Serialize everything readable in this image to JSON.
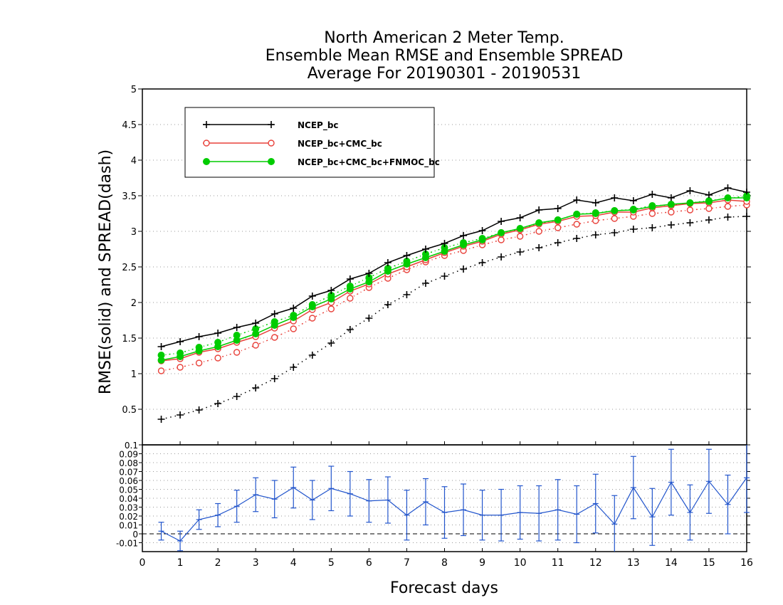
{
  "chart_data": [
    {
      "type": "line",
      "title": [
        "North American 2 Meter Temp.",
        "Ensemble Mean RMSE and Ensemble SPREAD",
        "Average For 20190301 - 20190531"
      ],
      "ylabel": "RMSE(solid) and SPREAD(dash)",
      "xlim": [
        0,
        16
      ],
      "ylim": [
        0,
        5
      ],
      "yticks": [
        0.5,
        1,
        1.5,
        2,
        2.5,
        3,
        3.5,
        4,
        4.5,
        5
      ],
      "ytick_labels": [
        "0.5",
        "1",
        "1.5",
        "2",
        "2.5",
        "3",
        "3.5",
        "4",
        "4.5",
        "5"
      ],
      "grid": "dotted horizontal",
      "legend_position": "top-left",
      "x": [
        0.5,
        1.0,
        1.5,
        2.0,
        2.5,
        3.0,
        3.5,
        4.0,
        4.5,
        5.0,
        5.5,
        6.0,
        6.5,
        7.0,
        7.5,
        8.0,
        8.5,
        9.0,
        9.5,
        10.0,
        10.5,
        11.0,
        11.5,
        12.0,
        12.5,
        13.0,
        13.5,
        14.0,
        14.5,
        15.0,
        15.5,
        16.0
      ],
      "series": [
        {
          "name": "NCEP_bc",
          "color": "#000000",
          "marker": "plus",
          "kind": "rmse",
          "values": [
            1.38,
            1.45,
            1.52,
            1.57,
            1.65,
            1.71,
            1.84,
            1.92,
            2.09,
            2.17,
            2.33,
            2.41,
            2.56,
            2.66,
            2.75,
            2.83,
            2.94,
            3.01,
            3.14,
            3.19,
            3.3,
            3.32,
            3.44,
            3.4,
            3.47,
            3.43,
            3.52,
            3.47,
            3.57,
            3.51,
            3.61,
            3.55
          ]
        },
        {
          "name": "NCEP_bc+CMC_bc",
          "color": "#e8413a",
          "marker": "circle",
          "kind": "rmse",
          "values": [
            1.18,
            1.21,
            1.3,
            1.35,
            1.44,
            1.52,
            1.64,
            1.74,
            1.9,
            2.0,
            2.16,
            2.26,
            2.4,
            2.5,
            2.6,
            2.7,
            2.79,
            2.86,
            2.96,
            3.02,
            3.1,
            3.14,
            3.21,
            3.22,
            3.27,
            3.27,
            3.33,
            3.36,
            3.39,
            3.4,
            3.44,
            3.42
          ]
        },
        {
          "name": "NCEP_bc+CMC_bc+FNMOC_bc",
          "color": "#00cc00",
          "marker": "dot",
          "kind": "rmse",
          "values": [
            1.19,
            1.24,
            1.32,
            1.38,
            1.47,
            1.56,
            1.68,
            1.79,
            1.94,
            2.05,
            2.19,
            2.29,
            2.44,
            2.54,
            2.63,
            2.72,
            2.81,
            2.88,
            2.98,
            3.04,
            3.12,
            3.16,
            3.24,
            3.25,
            3.29,
            3.3,
            3.35,
            3.38,
            3.4,
            3.42,
            3.47,
            3.47
          ]
        },
        {
          "name": "NCEP_bc",
          "color": "#000000",
          "marker": "plus",
          "kind": "spread",
          "values": [
            0.36,
            0.42,
            0.49,
            0.58,
            0.68,
            0.8,
            0.93,
            1.09,
            1.26,
            1.43,
            1.62,
            1.78,
            1.97,
            2.11,
            2.27,
            2.37,
            2.47,
            2.56,
            2.64,
            2.71,
            2.77,
            2.84,
            2.9,
            2.95,
            2.98,
            3.03,
            3.05,
            3.09,
            3.12,
            3.16,
            3.2,
            3.21
          ]
        },
        {
          "name": "NCEP_bc+CMC_bc",
          "color": "#e8413a",
          "marker": "circle",
          "kind": "spread",
          "values": [
            1.04,
            1.09,
            1.15,
            1.22,
            1.3,
            1.4,
            1.51,
            1.63,
            1.78,
            1.91,
            2.06,
            2.21,
            2.34,
            2.46,
            2.57,
            2.66,
            2.73,
            2.81,
            2.88,
            2.93,
            3.0,
            3.05,
            3.1,
            3.15,
            3.18,
            3.21,
            3.25,
            3.27,
            3.3,
            3.32,
            3.35,
            3.37
          ]
        },
        {
          "name": "NCEP_bc+CMC_bc+FNMOC_bc",
          "color": "#00cc00",
          "marker": "dot",
          "kind": "spread",
          "values": [
            1.26,
            1.29,
            1.37,
            1.44,
            1.54,
            1.63,
            1.73,
            1.82,
            1.97,
            2.1,
            2.23,
            2.35,
            2.48,
            2.58,
            2.68,
            2.77,
            2.84,
            2.9,
            2.98,
            3.03,
            3.11,
            3.16,
            3.24,
            3.26,
            3.29,
            3.31,
            3.36,
            3.37,
            3.4,
            3.43,
            3.46,
            3.5
          ]
        }
      ]
    },
    {
      "type": "line",
      "xlabel": "Forecast days",
      "xlim": [
        0,
        16
      ],
      "xticks": [
        0,
        1,
        2,
        3,
        4,
        5,
        6,
        7,
        8,
        9,
        10,
        11,
        12,
        13,
        14,
        15,
        16
      ],
      "xtick_labels": [
        "0",
        "1",
        "2",
        "3",
        "4",
        "5",
        "6",
        "7",
        "8",
        "9",
        "10",
        "11",
        "12",
        "13",
        "14",
        "15",
        "16"
      ],
      "ylim": [
        -0.02,
        0.1
      ],
      "yticks": [
        -0.01,
        0,
        0.01,
        0.02,
        0.03,
        0.04,
        0.05,
        0.06,
        0.07,
        0.08,
        0.09,
        0.1
      ],
      "ytick_labels": [
        "-0.01",
        "0",
        "0.01",
        "0.02",
        "0.03",
        "0.04",
        "0.05",
        "0.06",
        "0.07",
        "0.08",
        "0.09",
        "0.1"
      ],
      "grid": "dotted horizontal",
      "zero_line": "dashed",
      "series": [
        {
          "color": "#2255cc",
          "error_bars": true,
          "x": [
            0.5,
            1.0,
            1.5,
            2.0,
            2.5,
            3.0,
            3.5,
            4.0,
            4.5,
            5.0,
            5.5,
            6.0,
            6.5,
            7.0,
            7.5,
            8.0,
            8.5,
            9.0,
            9.5,
            10.0,
            10.5,
            11.0,
            11.5,
            12.0,
            12.5,
            13.0,
            13.5,
            14.0,
            14.5,
            15.0,
            15.5,
            16.0
          ],
          "values": [
            0.003,
            -0.008,
            0.016,
            0.021,
            0.031,
            0.044,
            0.039,
            0.052,
            0.038,
            0.051,
            0.045,
            0.037,
            0.038,
            0.021,
            0.036,
            0.024,
            0.027,
            0.021,
            0.021,
            0.024,
            0.023,
            0.027,
            0.022,
            0.034,
            0.011,
            0.052,
            0.019,
            0.058,
            0.024,
            0.059,
            0.033,
            0.063
          ],
          "err": [
            0.01,
            0.011,
            0.011,
            0.013,
            0.018,
            0.019,
            0.021,
            0.023,
            0.022,
            0.025,
            0.025,
            0.024,
            0.026,
            0.028,
            0.026,
            0.029,
            0.029,
            0.028,
            0.029,
            0.03,
            0.031,
            0.034,
            0.032,
            0.033,
            0.032,
            0.035,
            0.032,
            0.037,
            0.031,
            0.036,
            0.033,
            0.039
          ]
        }
      ]
    }
  ]
}
